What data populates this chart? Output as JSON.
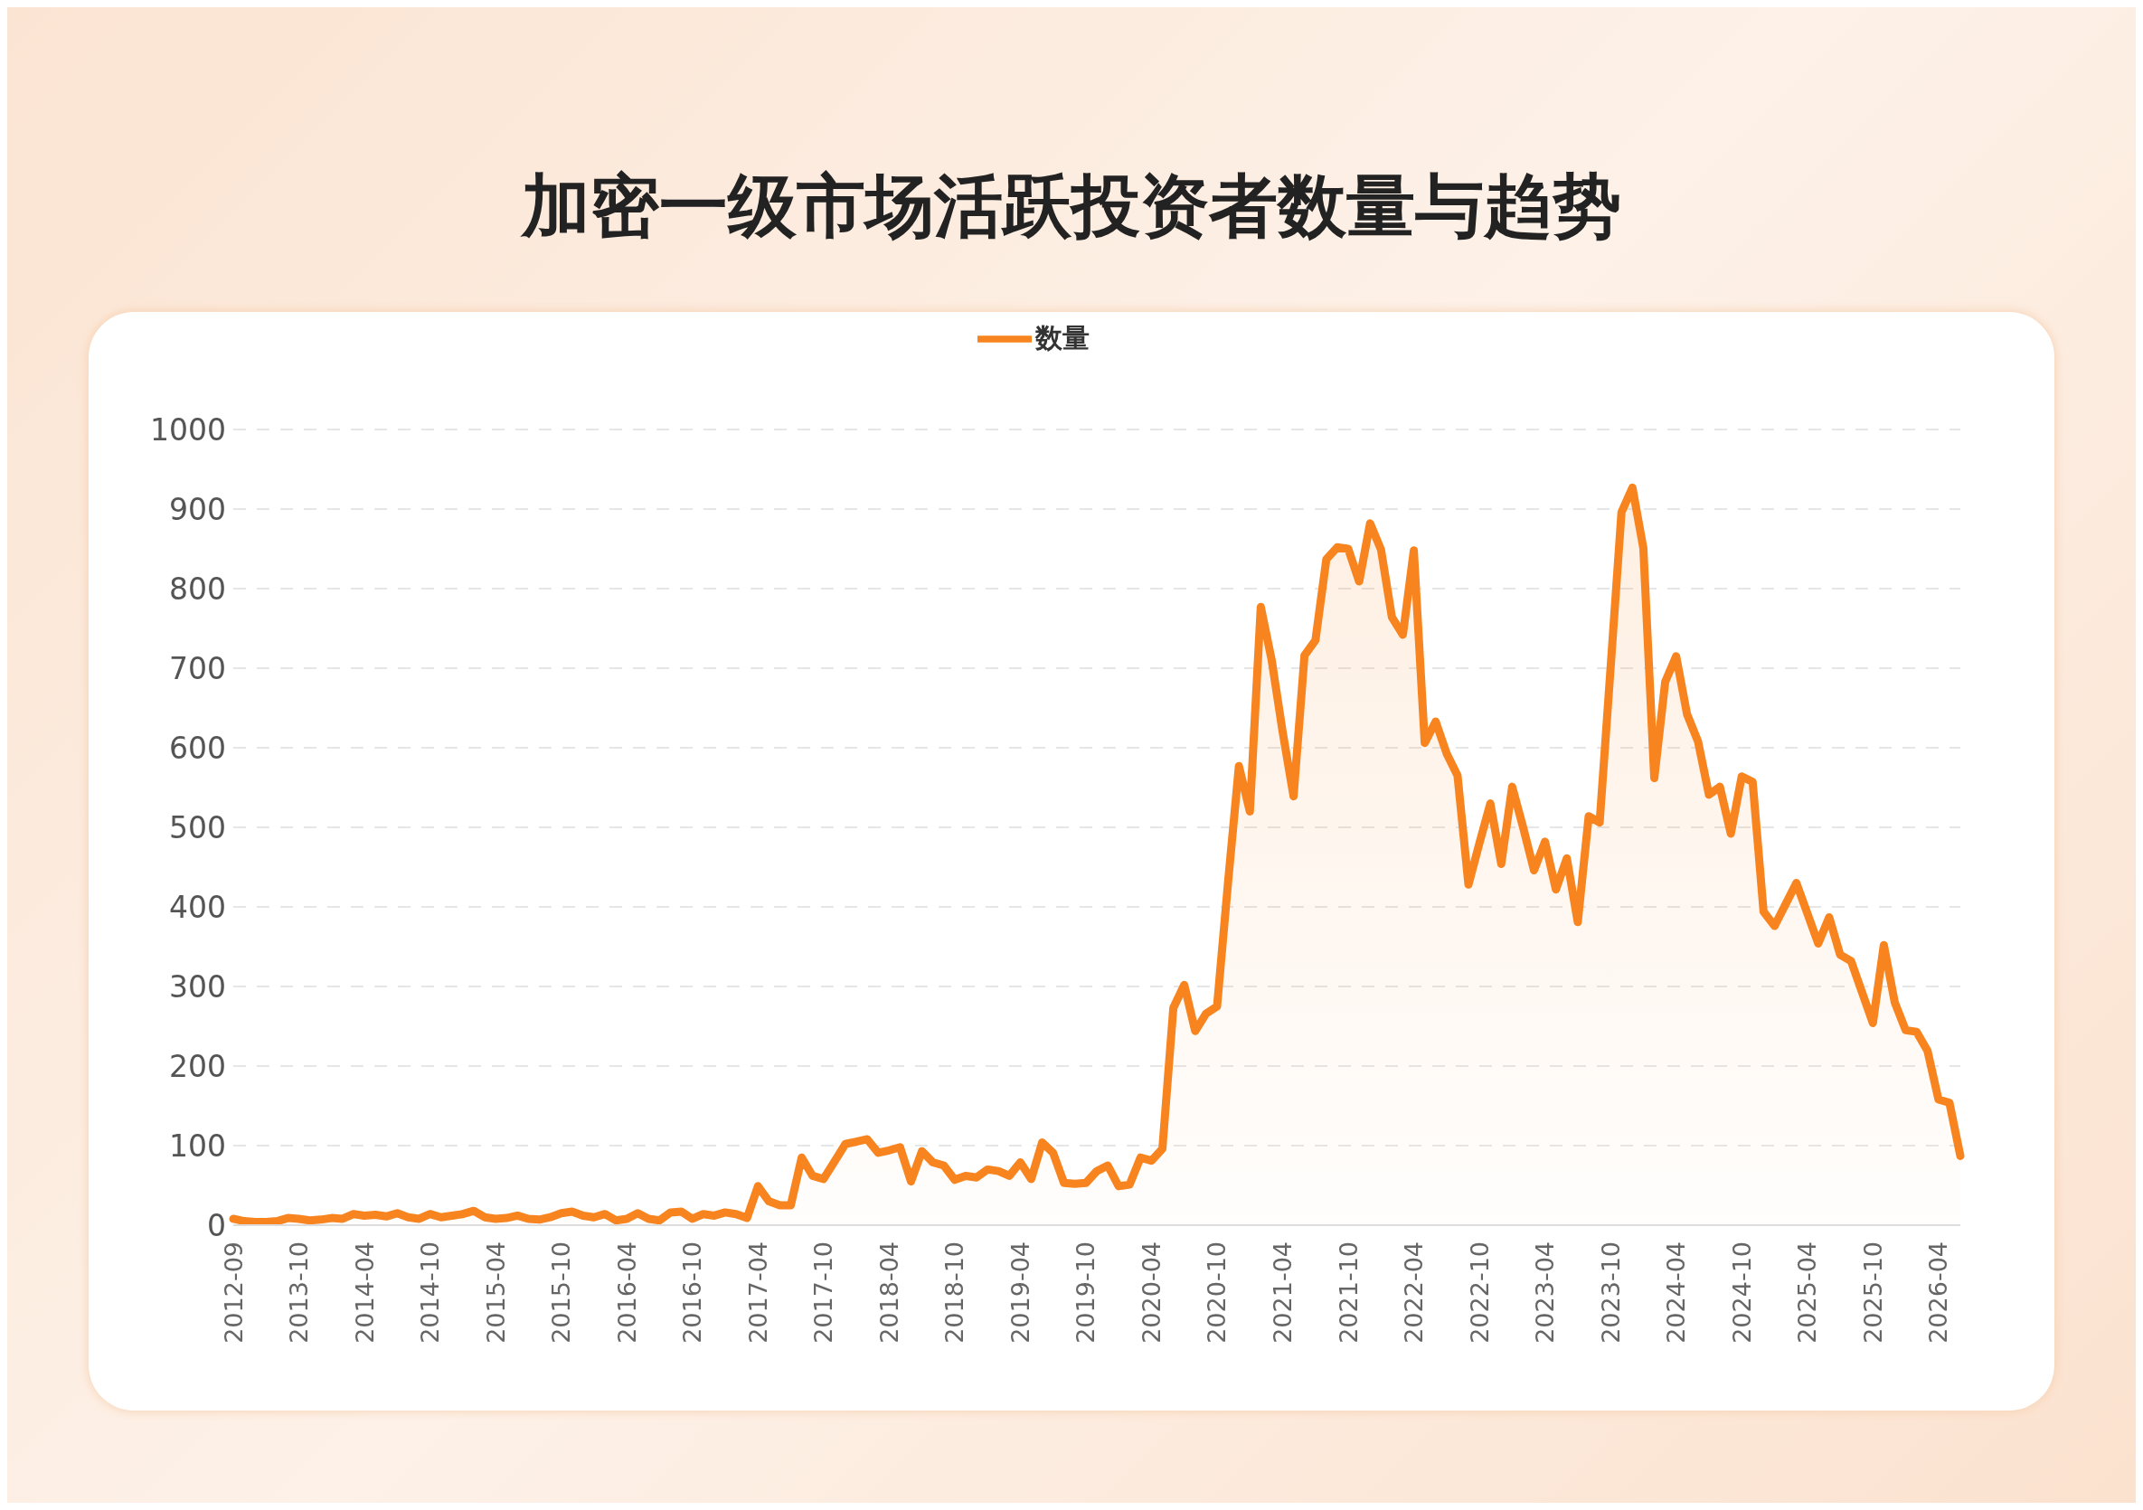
{
  "chart_data": {
    "type": "area",
    "title": "加密一级市场活跃投资者数量与趋势",
    "categories": [
      "2012-09",
      null,
      null,
      null,
      null,
      null,
      "2013-10",
      null,
      null,
      null,
      null,
      null,
      "2014-04",
      null,
      null,
      null,
      null,
      null,
      "2014-10",
      null,
      null,
      null,
      null,
      null,
      "2015-04",
      null,
      null,
      null,
      null,
      null,
      "2015-10",
      null,
      null,
      null,
      null,
      null,
      "2016-04",
      null,
      null,
      null,
      null,
      null,
      "2016-10",
      null,
      null,
      null,
      null,
      null,
      "2017-04",
      null,
      null,
      null,
      null,
      null,
      "2017-10",
      null,
      null,
      null,
      null,
      null,
      "2018-04",
      null,
      null,
      null,
      null,
      null,
      "2018-10",
      null,
      null,
      null,
      null,
      null,
      "2019-04",
      null,
      null,
      null,
      null,
      null,
      "2019-10",
      null,
      null,
      null,
      null,
      null,
      "2020-04",
      null,
      null,
      null,
      null,
      null,
      "2020-10",
      null,
      null,
      null,
      null,
      null,
      "2021-04",
      null,
      null,
      null,
      null,
      null,
      "2021-10",
      null,
      null,
      null,
      null,
      null,
      "2022-04",
      null,
      null,
      null,
      null,
      null,
      "2022-10",
      null,
      null,
      null,
      null,
      null,
      "2023-04",
      null,
      null,
      null,
      null,
      null,
      "2023-10",
      null,
      null,
      null,
      null,
      null,
      "2024-04",
      null,
      null,
      null,
      null,
      null,
      "2024-10",
      null,
      null,
      null,
      null,
      null,
      "2025-04",
      null,
      null,
      null,
      null,
      null,
      "2025-10",
      null,
      null,
      null,
      null,
      null,
      "2026-04",
      null,
      null
    ],
    "series": [
      {
        "name": "数量",
        "color": "#f7841f",
        "values": [
          8,
          5,
          4,
          4,
          5,
          9,
          8,
          6,
          7,
          9,
          8,
          14,
          12,
          13,
          11,
          15,
          10,
          8,
          14,
          10,
          12,
          14,
          18,
          10,
          8,
          9,
          12,
          8,
          7,
          10,
          15,
          17,
          12,
          10,
          14,
          6,
          8,
          15,
          8,
          6,
          16,
          17,
          8,
          14,
          12,
          16,
          14,
          9,
          49,
          30,
          25,
          25,
          85,
          62,
          58,
          80,
          102,
          105,
          108,
          91,
          94,
          98,
          55,
          93,
          79,
          75,
          57,
          62,
          60,
          70,
          68,
          62,
          79,
          58,
          104,
          91,
          53,
          52,
          53,
          68,
          75,
          49,
          51,
          85,
          81,
          96,
          273,
          302,
          244,
          266,
          275,
          430,
          577,
          520,
          777,
          710,
          620,
          539,
          716,
          735,
          837,
          852,
          850,
          809,
          882,
          849,
          764,
          742,
          848,
          606,
          633,
          593,
          565,
          428,
          480,
          530,
          454,
          551,
          500,
          446,
          482,
          422,
          461,
          381,
          514,
          506,
          700,
          896,
          927,
          851,
          562,
          683,
          715,
          642,
          608,
          541,
          551,
          492,
          564,
          557,
          394,
          376,
          403,
          430,
          392,
          354,
          387,
          340,
          332,
          293,
          254,
          352,
          280,
          245,
          243,
          219,
          158,
          154,
          87
        ]
      }
    ],
    "ylim": [
      0,
      1000
    ],
    "yticks": [
      0,
      100,
      200,
      300,
      400,
      500,
      600,
      700,
      800,
      900,
      1000
    ],
    "grid": "y",
    "legend": "top",
    "marker": "none"
  }
}
